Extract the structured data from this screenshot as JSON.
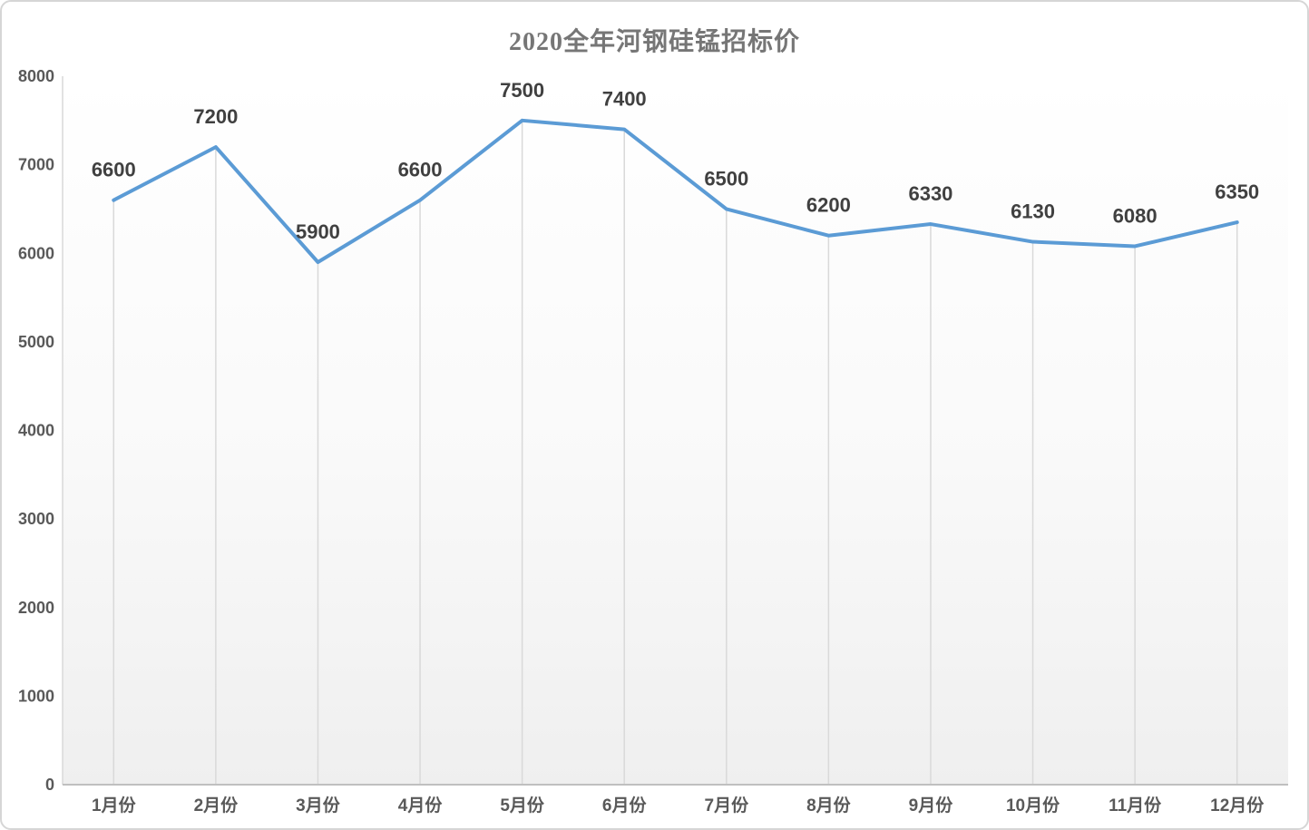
{
  "title": "2020全年河钢硅锰招标价",
  "chart_data": {
    "type": "line",
    "title": "2020全年河钢硅锰招标价",
    "categories": [
      "1月份",
      "2月份",
      "3月份",
      "4月份",
      "5月份",
      "6月份",
      "7月份",
      "8月份",
      "9月份",
      "10月份",
      "11月份",
      "12月份"
    ],
    "values": [
      6600,
      7200,
      5900,
      6600,
      7500,
      7400,
      6500,
      6200,
      6330,
      6130,
      6080,
      6350
    ],
    "data_labels": [
      "6600",
      "7200",
      "5900",
      "6600",
      "7500",
      "7400",
      "6500",
      "6200",
      "6330",
      "6130",
      "6080",
      "6350"
    ],
    "xlabel": "",
    "ylabel": "",
    "ylim": [
      0,
      8000
    ],
    "yticks": [
      0,
      1000,
      2000,
      3000,
      4000,
      5000,
      6000,
      7000,
      8000
    ],
    "grid": "vertical drop lines from each point to x-axis only, no horizontal gridlines",
    "legend_position": "none",
    "colors": {
      "line": "#5b9bd5",
      "drop_line": "#d9d9d9",
      "axis_line": "#bfbfbf",
      "plot_bg_top": "#ffffff",
      "plot_bg_bottom": "#efefef",
      "title_text": "#767676",
      "axis_text": "#595959",
      "data_label_text": "#404040",
      "card_border": "#d6d6d6",
      "background": "#ffffff"
    }
  }
}
